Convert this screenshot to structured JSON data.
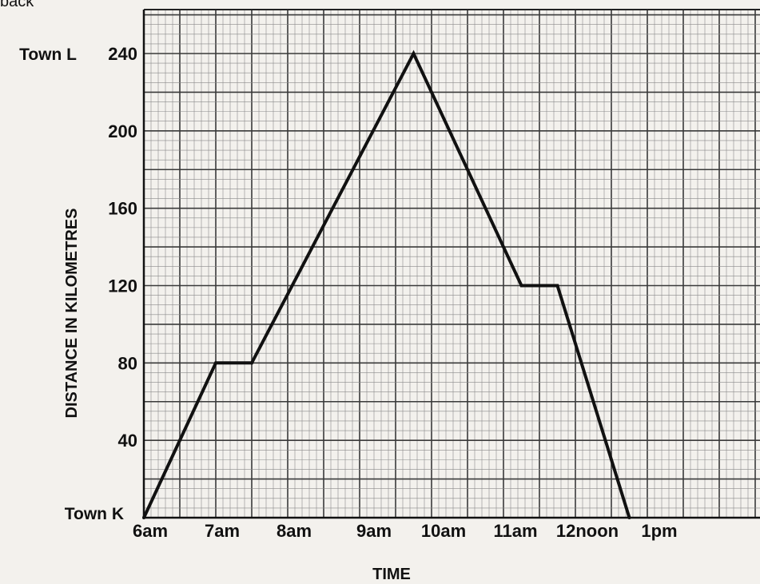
{
  "top_fragment": "back",
  "chart_data": {
    "type": "line",
    "xlabel": "TIME",
    "ylabel": "DISTANCE IN KILOMETRES",
    "x_tick_labels": [
      "6am",
      "7am",
      "8am",
      "9am",
      "10am",
      "11am",
      "12noon",
      "1pm"
    ],
    "y_ticks": [
      40,
      80,
      120,
      160,
      200,
      240
    ],
    "ylim": [
      0,
      260
    ],
    "grid": true,
    "town_labels": [
      {
        "name": "Town L",
        "y": 240
      },
      {
        "name": "Town K",
        "y": 0
      }
    ],
    "series": [
      {
        "x": [
          "6:00",
          "7:00",
          "7:30",
          "9:45",
          "11:15",
          "11:45",
          "12:45"
        ],
        "y": [
          0,
          80,
          80,
          240,
          120,
          120,
          0
        ]
      }
    ]
  }
}
